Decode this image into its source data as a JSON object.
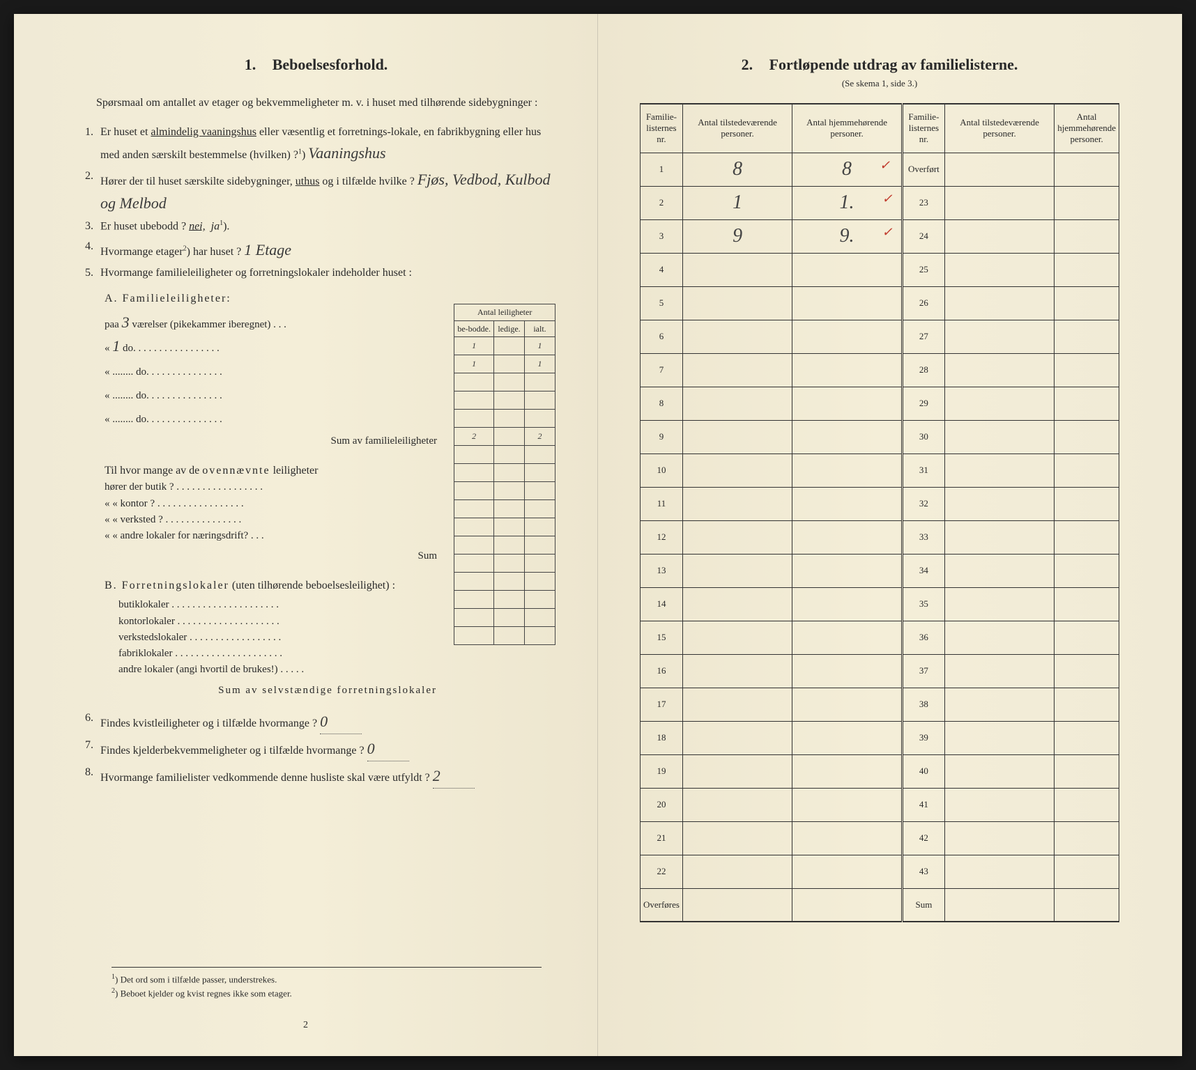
{
  "colors": {
    "paper": "#f0ead6",
    "paper_mid": "#f4eed8",
    "paper_edge": "#ede6cf",
    "ink": "#2a2a2a",
    "border": "#333333",
    "handwriting": "#3a3a3a",
    "tick": "#c0392b",
    "background": "#1a1a1a"
  },
  "typography": {
    "body_font": "Georgia, Times New Roman, serif",
    "hand_font": "Brush Script MT, cursive",
    "title_size": 22,
    "body_size": 16,
    "footnote_size": 13,
    "table_header_size": 13
  },
  "left": {
    "section_num": "1.",
    "section_title": "Beboelsesforhold.",
    "intro": "Spørsmaal om antallet av etager og bekvemmeligheter m. v. i huset med tilhørende sidebygninger :",
    "q1_pre": "Er huset et ",
    "q1_under": "almindelig vaaningshus",
    "q1_post": " eller væsentlig et forretnings-lokale, en fabrikbygning eller hus med anden særskilt bestemmelse (hvilken) ?",
    "q1_ans": "Vaaningshus",
    "q2_pre": "Hører der til huset særskilte sidebygninger, ",
    "q2_under": "uthus",
    "q2_post": " og i tilfælde hvilke ? ",
    "q2_ans": "Fjøs, Vedbod, Kulbod og Melbod",
    "q3_text": "Er huset ubebodd ? ",
    "q3_nei": "nei,",
    "q3_ja": "ja",
    "q4_text": "Hvormange etager",
    "q4_post": " har huset ? ",
    "q4_ans": "1 Etage",
    "q5_text": "Hvormange familieleiligheter og forretningslokaler indeholder huset :",
    "antal_header": "Antal leiligheter",
    "col_bebodde": "be-bodde.",
    "col_ledige": "ledige.",
    "col_ialt": "ialt.",
    "secA_title": "A. Familieleiligheter:",
    "secA_rows": [
      {
        "pre": "paa ",
        "hw": "3",
        "post": " værelser (pikekammer iberegnet) . . .",
        "bebodde": "1",
        "ledige": "",
        "ialt": "1"
      },
      {
        "pre": "«   ",
        "hw": "1",
        "post": "   do.   . . . . . . . . . . . . . . . .",
        "bebodde": "1",
        "ledige": "",
        "ialt": "1"
      },
      {
        "pre": "«   ",
        "hw": "",
        "post": "........   do.   . . . . . . . . . . . . . .",
        "bebodde": "",
        "ledige": "",
        "ialt": ""
      },
      {
        "pre": "«   ",
        "hw": "",
        "post": "........   do.   . . . . . . . . . . . . . .",
        "bebodde": "",
        "ledige": "",
        "ialt": ""
      },
      {
        "pre": "«   ",
        "hw": "",
        "post": "........   do.   . . . . . . . . . . . . . .",
        "bebodde": "",
        "ledige": "",
        "ialt": ""
      }
    ],
    "sumA_label": "Sum av familieleiligheter",
    "sumA_bebodde": "2",
    "sumA_ialt": "2",
    "ovenn_intro": "Til hvor mange av de ",
    "ovenn_word": "ovennævnte",
    "ovenn_post": " leiligheter",
    "ovenn_rows": [
      "hører der butik ? . . . . . . . . . . . . . . . . .",
      "«     «   kontor ? . . . . . . . . . . . . . . . . .",
      "«     «   verksted ? . . . . . . . . . . . . . . .",
      "«     «   andre lokaler for næringsdrift? . . ."
    ],
    "sum_label": "Sum",
    "secB_title": "B. Forretningslokaler",
    "secB_post": " (uten tilhørende beboelsesleilighet) :",
    "secB_rows": [
      "butiklokaler . . . . . . . . . . . . . . . . . . . . .",
      "kontorlokaler . . . . . . . . . . . . . . . . . . . .",
      "verkstedslokaler . . . . . . . . . . . . . . . . . .",
      "fabriklokaler . . . . . . . . . . . . . . . . . . . . .",
      "andre lokaler (angi hvortil de brukes!) . . . . ."
    ],
    "sumB_label": "Sum av selvstændige forretningslokaler",
    "q6_text": "Findes kvistleiligheter og i tilfælde hvormange ? ",
    "q6_ans": "0",
    "q7_text": "Findes kjelderbekvemmeligheter og i tilfælde hvormange ? ",
    "q7_ans": "0",
    "q8_text": "Hvormange familielister vedkommende denne husliste skal være utfyldt ? ",
    "q8_ans": "2",
    "fn1": "Det ord som i tilfælde passer, understrekes.",
    "fn2": "Beboet kjelder og kvist regnes ikke som etager.",
    "pagenum": "2"
  },
  "right": {
    "section_num": "2.",
    "section_title": "Fortløpende utdrag av familielisterne.",
    "subtitle": "(Se skema 1, side 3.)",
    "headers": {
      "nr": "Familie-listernes nr.",
      "tilstede": "Antal tilstedeværende personer.",
      "hjemme": "Antal hjemmehørende personer."
    },
    "overfort": "Overført",
    "overfores": "Overføres",
    "sum": "Sum",
    "rows_left": [
      {
        "nr": "1",
        "t": "8",
        "h": "8",
        "tick": true
      },
      {
        "nr": "2",
        "t": "1",
        "h": "1.",
        "tick": true
      },
      {
        "nr": "3",
        "t": "9",
        "h": "9.",
        "tick": true
      },
      {
        "nr": "4",
        "t": "",
        "h": ""
      },
      {
        "nr": "5",
        "t": "",
        "h": ""
      },
      {
        "nr": "6",
        "t": "",
        "h": ""
      },
      {
        "nr": "7",
        "t": "",
        "h": ""
      },
      {
        "nr": "8",
        "t": "",
        "h": ""
      },
      {
        "nr": "9",
        "t": "",
        "h": ""
      },
      {
        "nr": "10",
        "t": "",
        "h": ""
      },
      {
        "nr": "11",
        "t": "",
        "h": ""
      },
      {
        "nr": "12",
        "t": "",
        "h": ""
      },
      {
        "nr": "13",
        "t": "",
        "h": ""
      },
      {
        "nr": "14",
        "t": "",
        "h": ""
      },
      {
        "nr": "15",
        "t": "",
        "h": ""
      },
      {
        "nr": "16",
        "t": "",
        "h": ""
      },
      {
        "nr": "17",
        "t": "",
        "h": ""
      },
      {
        "nr": "18",
        "t": "",
        "h": ""
      },
      {
        "nr": "19",
        "t": "",
        "h": ""
      },
      {
        "nr": "20",
        "t": "",
        "h": ""
      },
      {
        "nr": "21",
        "t": "",
        "h": ""
      },
      {
        "nr": "22",
        "t": "",
        "h": ""
      }
    ],
    "rows_right_nr": [
      "23",
      "24",
      "25",
      "26",
      "27",
      "28",
      "29",
      "30",
      "31",
      "32",
      "33",
      "34",
      "35",
      "36",
      "37",
      "38",
      "39",
      "40",
      "41",
      "42",
      "43"
    ]
  }
}
